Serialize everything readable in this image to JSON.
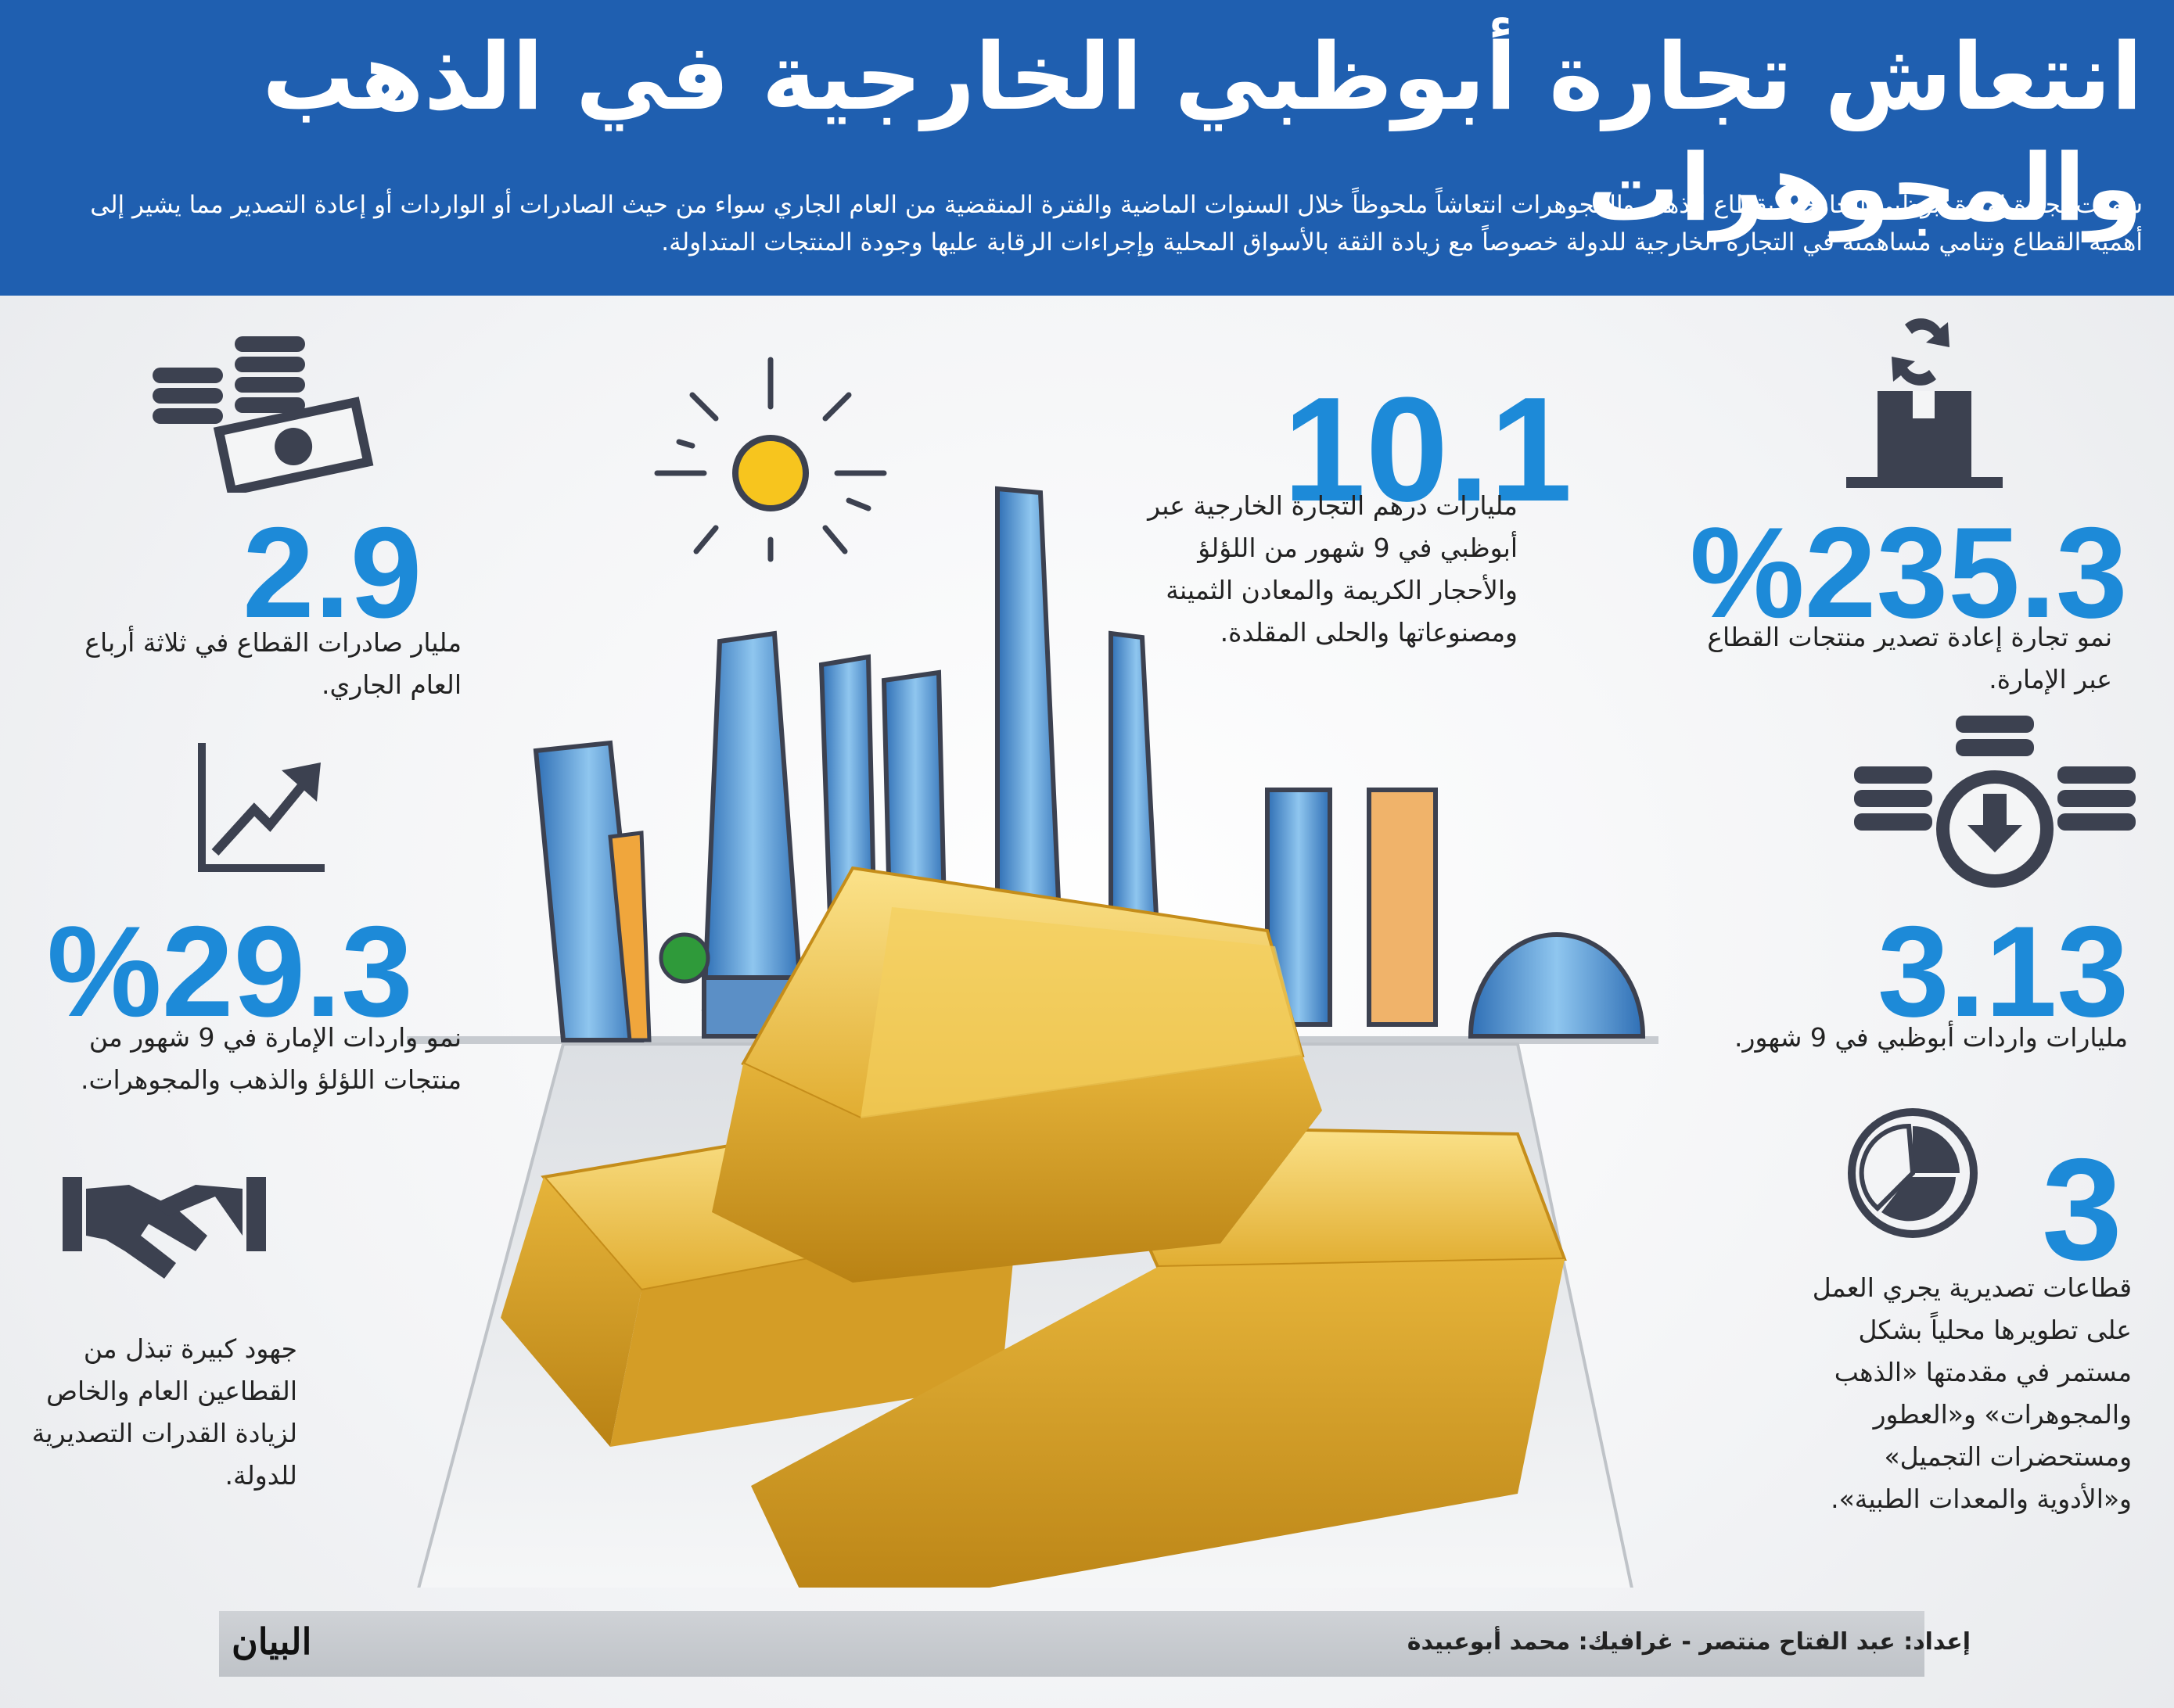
{
  "header": {
    "title": "انتعاش تجارة أبوظبي الخارجية في الذهب والمجوهرات",
    "intro": "شهدت تجارة إمارة أبوظبي الخارجية بقطاع الذهب والمجوهرات انتعاشاً ملحوظاً خلال السنوات الماضية والفترة المنقضية من العام الجاري سواء من حيث الصادرات أو الواردات أو إعادة التصدير مما يشير إلى أهمية القطاع وتنامي مساهمته في التجارة الخارجية للدولة خصوصاً مع زيادة الثقة بالأسواق المحلية وإجراءات الرقابة عليها وجودة المنتجات المتداولة."
  },
  "stats": {
    "reexport": {
      "value": "%235.3",
      "desc": "نمو تجارة إعادة تصدير منتجات القطاع عبر الإمارة."
    },
    "imports": {
      "value": "3.13",
      "desc": "مليارات واردات أبوظبي في 9 شهور."
    },
    "sectors": {
      "value": "3",
      "desc": "قطاعات تصديرية يجري العمل على تطويرها محلياً بشكل مستمر في مقدمتها «الذهب والمجوهرات» و«العطور ومستحضرات التجميل» و«الأدوية والمعدات الطبية»."
    },
    "trade": {
      "value": "10.1",
      "desc": "مليارات درهم التجارة الخارجية عبر أبوظبي في 9 شهور من اللؤلؤ والأحجار الكريمة والمعادن الثمينة ومصنوعاتها والحلى المقلدة."
    },
    "exports": {
      "value": "2.9",
      "desc": "مليار صادرات القطاع في ثلاثة أرباع العام الجاري."
    },
    "growth": {
      "value": "%29.3",
      "desc": "نمو واردات الإمارة في 9 شهور من منتجات اللؤلؤ والذهب والمجوهرات."
    },
    "efforts": {
      "desc": "جهود كبيرة تبذل من القطاعين العام والخاص لزيادة القدرات التصديرية للدولة."
    }
  },
  "footer": {
    "credits": "إعداد: عبد الفتاح منتصر - غرافيك: محمد أبوعبيدة",
    "logo": "البيان"
  },
  "icons": [
    "reexport-box-icon",
    "coins-download-icon",
    "pie-chart-icon",
    "money-coins-icon",
    "growth-arrow-icon",
    "handshake-icon",
    "sun-icon",
    "skyline-illustration",
    "gold-bars-illustration"
  ],
  "colors": {
    "header": "#1f5fb0",
    "accent": "#1d8ad8",
    "gold": "#e3b43a",
    "dark": "#3c4150"
  }
}
